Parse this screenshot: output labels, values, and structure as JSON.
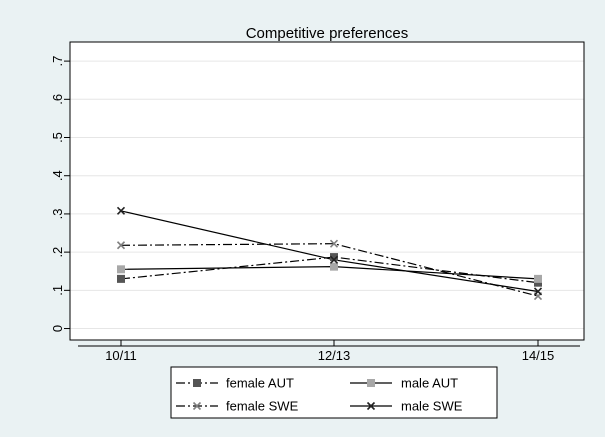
{
  "chart_data": {
    "type": "line",
    "title": "Competitive preferences",
    "xlabel": "",
    "ylabel": "",
    "categories": [
      "10/11",
      "12/13",
      "14/15"
    ],
    "yticks": [
      0,
      0.1,
      0.2,
      0.3,
      0.4,
      0.5,
      0.6,
      0.7
    ],
    "ytick_labels": [
      "0",
      ".1",
      ".2",
      ".3",
      ".4",
      ".5",
      ".6",
      ".7"
    ],
    "ylim": [
      -0.03,
      0.75
    ],
    "grid": true,
    "legend_position": "bottom",
    "series": [
      {
        "name": "female AUT",
        "values": [
          0.13,
          0.187,
          0.12
        ],
        "marker": "square",
        "marker_color": "#555555",
        "dash": "dashdot"
      },
      {
        "name": "male AUT",
        "values": [
          0.155,
          0.162,
          0.13
        ],
        "marker": "square",
        "marker_color": "#a8a8a8",
        "dash": "solid"
      },
      {
        "name": "female SWE",
        "values": [
          0.218,
          0.222,
          0.085
        ],
        "marker": "x",
        "marker_color": "#808080",
        "dash": "dashdot"
      },
      {
        "name": "male SWE",
        "values": [
          0.308,
          0.18,
          0.097
        ],
        "marker": "x",
        "marker_color": "#222222",
        "dash": "solid"
      }
    ]
  }
}
